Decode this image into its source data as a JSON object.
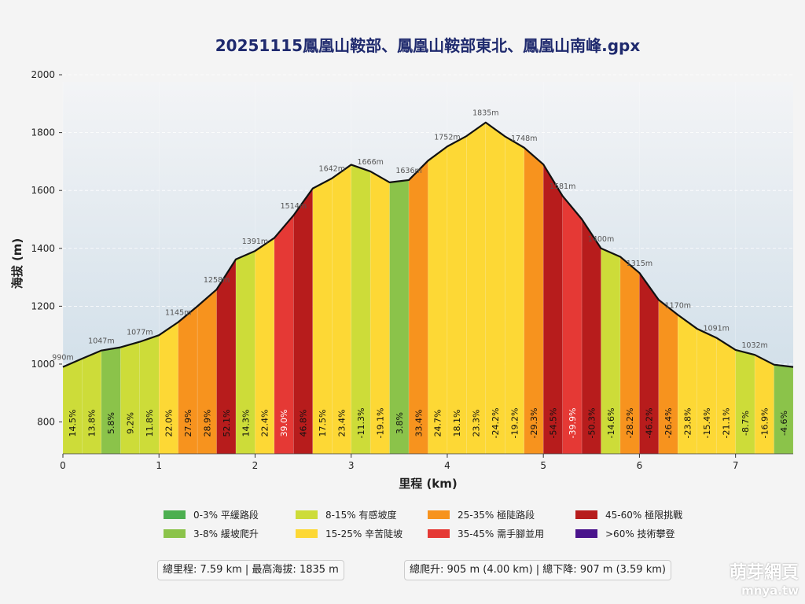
{
  "chart_data": {
    "type": "area",
    "title": "20251115鳳凰山鞍部、鳳凰山鞍部東北、鳳凰山南峰.gpx",
    "xlabel": "里程 (km)",
    "ylabel": "海拔 (m)",
    "xlim": [
      0,
      7.6
    ],
    "ylim": [
      690,
      2030
    ],
    "xticks": [
      0,
      1,
      2,
      3,
      4,
      5,
      6,
      7
    ],
    "yticks": [
      800,
      1000,
      1200,
      1400,
      1600,
      1800,
      2000
    ],
    "grid": true,
    "segment_km": 0.2,
    "elevations": [
      990,
      1019,
      1047,
      1058,
      1077,
      1100,
      1145,
      1200,
      1258,
      1362,
      1391,
      1436,
      1514,
      1607,
      1642,
      1689,
      1666,
      1628,
      1636,
      1703,
      1752,
      1788,
      1835,
      1787,
      1748,
      1690,
      1581,
      1501,
      1400,
      1371,
      1315,
      1222,
      1170,
      1122,
      1091,
      1049,
      1032,
      998,
      990
    ],
    "grades": [
      14.5,
      13.8,
      5.8,
      9.2,
      11.8,
      22.0,
      27.9,
      28.9,
      52.1,
      14.3,
      22.4,
      39.0,
      46.8,
      17.5,
      23.4,
      -11.3,
      -19.1,
      3.8,
      33.4,
      24.7,
      18.1,
      23.3,
      -24.2,
      -19.2,
      -29.3,
      -54.5,
      -39.9,
      -50.3,
      -14.6,
      -28.2,
      -46.2,
      -26.4,
      -23.8,
      -15.4,
      -21.1,
      -8.7,
      -16.9,
      -4.6
    ],
    "elevation_labels": [
      "990m",
      "1047m",
      "1077m",
      "1145m",
      "1258m",
      "1391m",
      "1514m",
      "1642m",
      "1666m",
      "1636m",
      "1752m",
      "1835m",
      "1748m",
      "1581m",
      "1400m",
      "1315m",
      "1170m",
      "1091m",
      "1032m"
    ],
    "elevation_label_points": [
      0,
      2,
      4,
      6,
      8,
      10,
      12,
      14,
      16,
      18,
      20,
      22,
      24,
      26,
      28,
      30,
      32,
      34,
      36
    ],
    "legend": [
      {
        "label": "0-3% 平緩路段",
        "color": "#4caf50"
      },
      {
        "label": "3-8% 緩坡爬升",
        "color": "#8bc34a"
      },
      {
        "label": "8-15% 有感坡度",
        "color": "#cddc39"
      },
      {
        "label": "15-25% 辛苦陡坡",
        "color": "#fdd835"
      },
      {
        "label": "25-35% 極陡路段",
        "color": "#f7931e"
      },
      {
        "label": "35-45% 需手腳並用",
        "color": "#e53935"
      },
      {
        "label": "45-60% 極限挑戰",
        "color": "#b71c1c"
      },
      {
        "label": ">60% 技術攀登",
        "color": "#4a148c"
      }
    ]
  },
  "stats": {
    "left": "總里程: 7.59 km | 最高海拔: 1835 m",
    "right": "總爬升: 905 m (4.00 km) | 總下降: 907 m (3.59 km)"
  },
  "watermark": {
    "name": "萌芽網頁",
    "url": "mnya.tw"
  }
}
